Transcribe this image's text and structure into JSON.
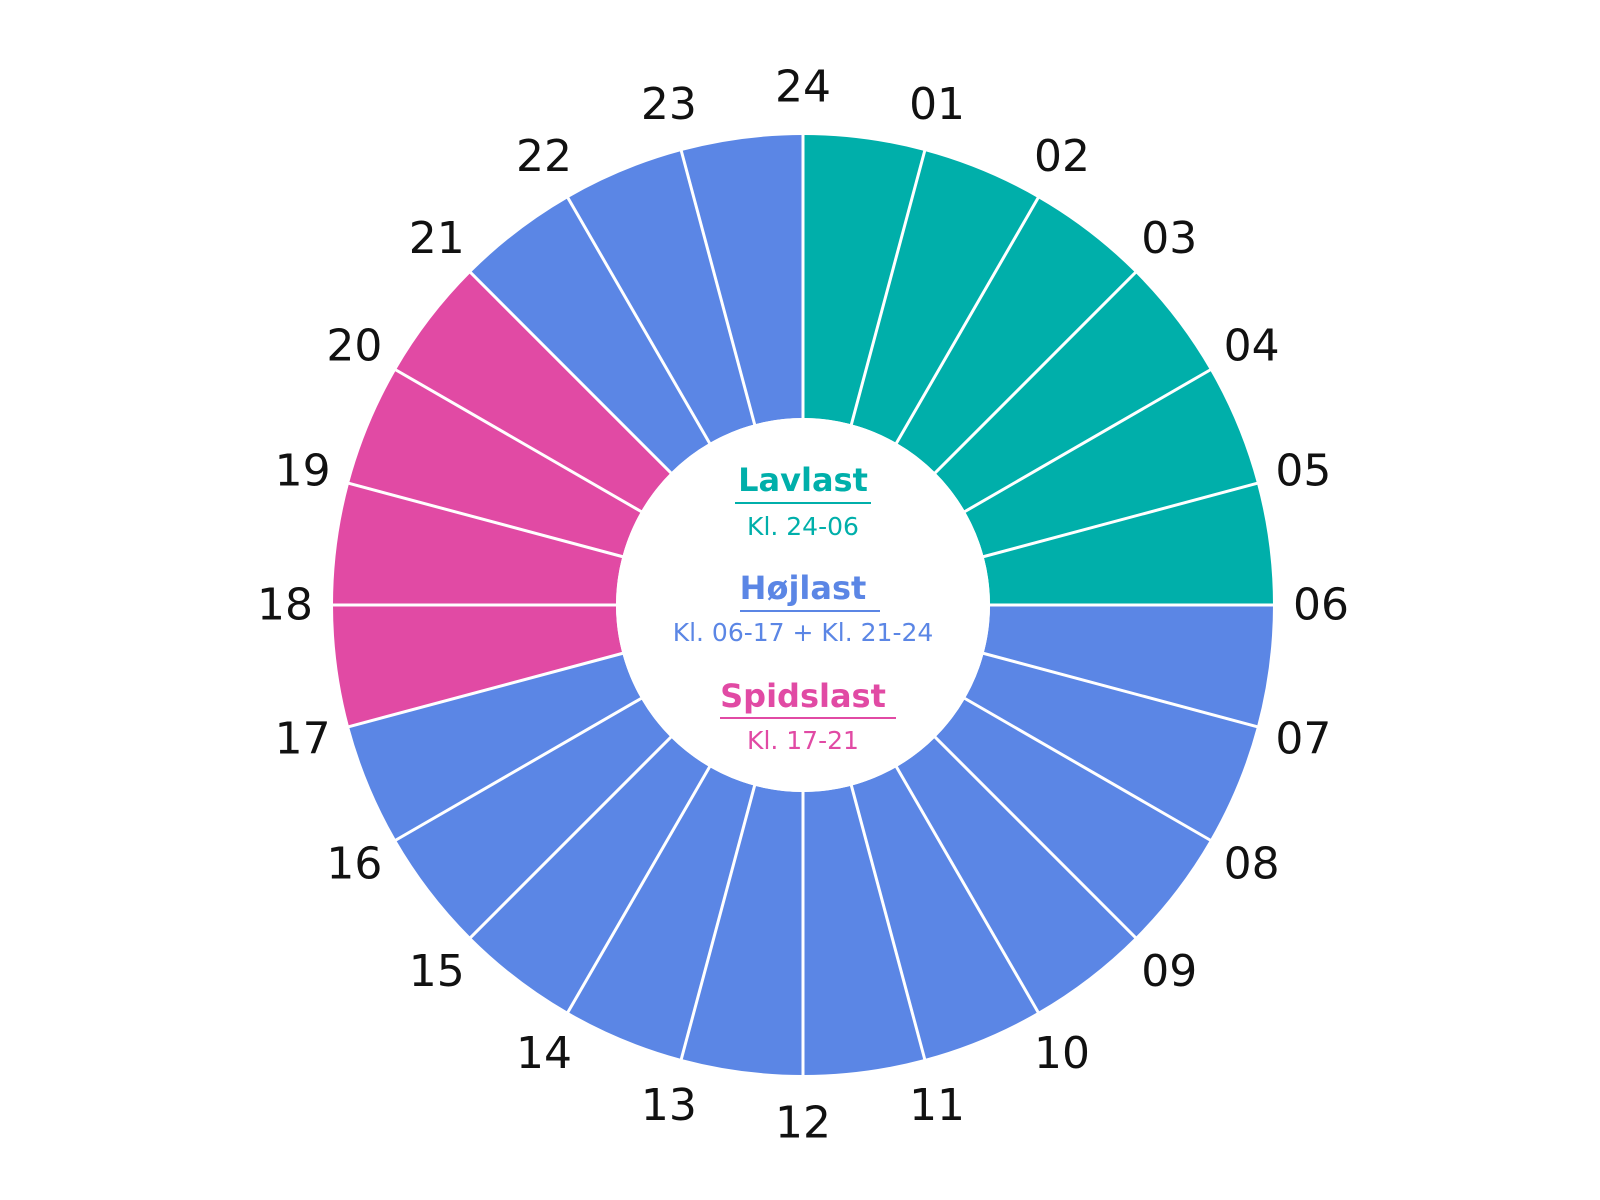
{
  "wheel": {
    "colors": {
      "lavlast": "#00AFAA",
      "hojlast": "#5B86E5",
      "spidslast": "#E14AA4",
      "divider": "#FFFFFF"
    },
    "hours": [
      {
        "label": "01",
        "band": "lavlast"
      },
      {
        "label": "02",
        "band": "lavlast"
      },
      {
        "label": "03",
        "band": "lavlast"
      },
      {
        "label": "04",
        "band": "lavlast"
      },
      {
        "label": "05",
        "band": "lavlast"
      },
      {
        "label": "06",
        "band": "lavlast"
      },
      {
        "label": "07",
        "band": "hojlast"
      },
      {
        "label": "08",
        "band": "hojlast"
      },
      {
        "label": "09",
        "band": "hojlast"
      },
      {
        "label": "10",
        "band": "hojlast"
      },
      {
        "label": "11",
        "band": "hojlast"
      },
      {
        "label": "12",
        "band": "hojlast"
      },
      {
        "label": "13",
        "band": "hojlast"
      },
      {
        "label": "14",
        "band": "hojlast"
      },
      {
        "label": "15",
        "band": "hojlast"
      },
      {
        "label": "16",
        "band": "hojlast"
      },
      {
        "label": "17",
        "band": "hojlast"
      },
      {
        "label": "18",
        "band": "spidslast"
      },
      {
        "label": "19",
        "band": "spidslast"
      },
      {
        "label": "20",
        "band": "spidslast"
      },
      {
        "label": "21",
        "band": "spidslast"
      },
      {
        "label": "22",
        "band": "hojlast"
      },
      {
        "label": "23",
        "band": "hojlast"
      },
      {
        "label": "24",
        "band": "hojlast"
      }
    ]
  },
  "legend": {
    "lavlast": {
      "title": "Lavlast",
      "subtitle": "Kl. 24-06"
    },
    "hojlast": {
      "title": "Højlast",
      "subtitle": "Kl. 06-17 + Kl. 21-24"
    },
    "spidslast": {
      "title": "Spidslast",
      "subtitle": "Kl. 17-21"
    }
  }
}
